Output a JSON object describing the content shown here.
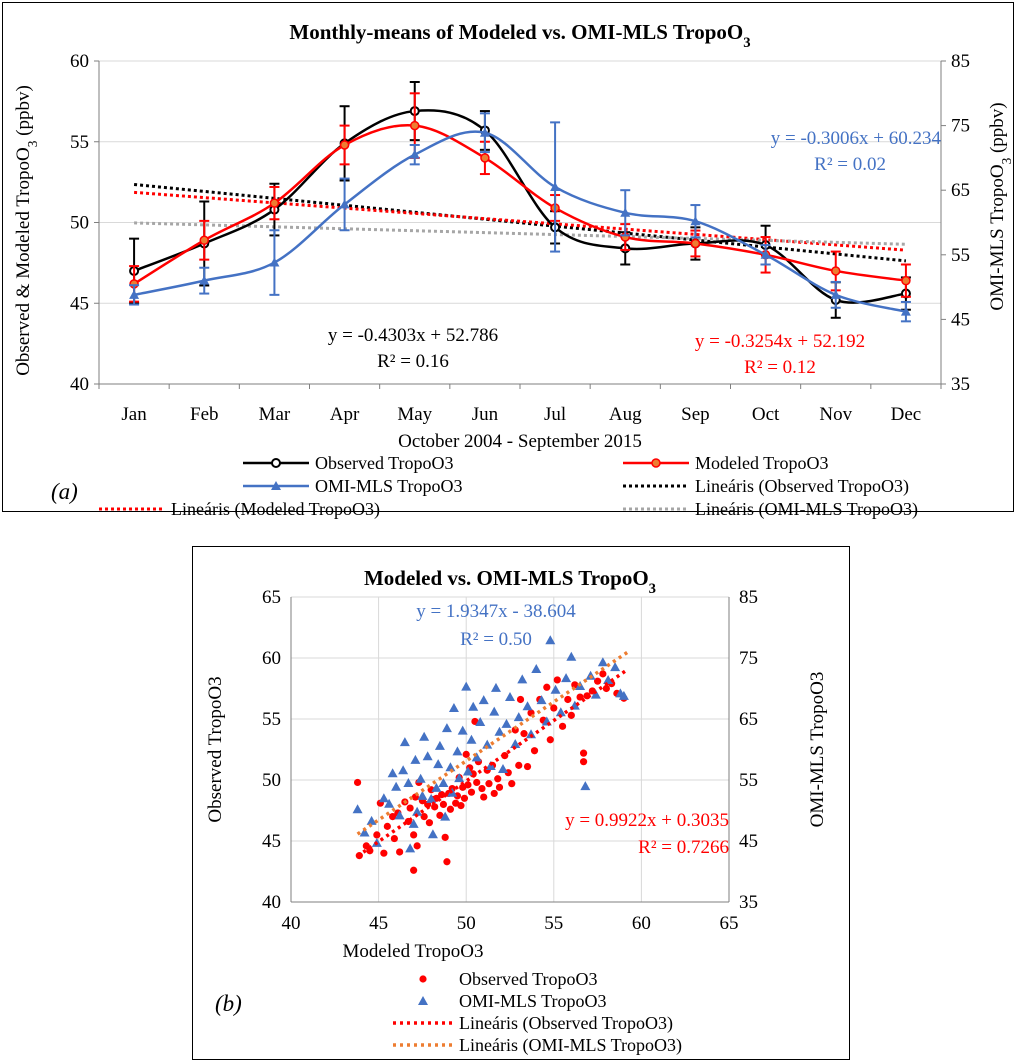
{
  "chart_data": [
    {
      "type": "line",
      "panel_label": "(a)",
      "title": "Monthly-means of Modeled vs. OMI-MLS TropoO",
      "title_subscript": "3",
      "xlabel": "October 2004 - September 2015",
      "ylabel": "Observed & Modeled TropoO",
      "ylabel_subscript": "3",
      "ylabel_unit": " (ppbv)",
      "y2label": "OMI-MLS TropoO",
      "y2label_subscript": "3",
      "y2label_unit": " (ppbv)",
      "ylim": [
        40,
        60
      ],
      "y2lim": [
        35,
        85
      ],
      "yticks": [
        40,
        45,
        50,
        55,
        60
      ],
      "y2ticks": [
        35,
        45,
        55,
        65,
        75,
        85
      ],
      "categories": [
        "Jan",
        "Feb",
        "Mar",
        "Apr",
        "May",
        "Jun",
        "Jul",
        "Aug",
        "Sep",
        "Oct",
        "Nov",
        "Dec"
      ],
      "grid": "horizontal",
      "series": [
        {
          "name": "Observed TropoO3",
          "axis": "left",
          "color": "#000000",
          "marker": "circle",
          "values": [
            47.0,
            48.7,
            50.8,
            54.9,
            56.9,
            55.7,
            49.7,
            48.4,
            48.7,
            48.6,
            45.2,
            45.6
          ],
          "err": [
            2.0,
            2.6,
            1.6,
            2.3,
            1.8,
            1.2,
            1.0,
            1.0,
            1.0,
            1.2,
            1.1,
            1.0
          ]
        },
        {
          "name": "Modeled TropoO3",
          "axis": "left",
          "color": "#ff0000",
          "marker": "circle-filled",
          "values": [
            46.2,
            48.9,
            51.2,
            54.8,
            56.0,
            54.0,
            50.9,
            49.1,
            48.7,
            48.0,
            47.0,
            46.4
          ],
          "err": [
            1.1,
            1.2,
            1.0,
            1.2,
            2.0,
            1.0,
            0.8,
            0.8,
            0.8,
            1.1,
            1.2,
            1.0
          ]
        },
        {
          "name": "OMI-MLS TropoO3",
          "axis": "right",
          "color": "#4472c4",
          "marker": "triangle",
          "values": [
            48.8,
            51.0,
            53.8,
            62.8,
            70.5,
            73.9,
            65.5,
            61.5,
            60.2,
            55.0,
            48.8,
            46.2
          ],
          "err": [
            1.5,
            2.0,
            5.0,
            4.0,
            1.5,
            3.0,
            10.0,
            3.5,
            2.5,
            1.5,
            2.0,
            1.5
          ]
        }
      ],
      "trendlines": [
        {
          "name": "Lineáris (Observed TropoO3)",
          "axis": "left",
          "color": "#000000",
          "equation": "y = -0.4303x + 52.786",
          "r2": "R² = 0.16",
          "slope": -0.4303,
          "intercept": 52.786
        },
        {
          "name": "Lineáris (Modeled TropoO3)",
          "axis": "left",
          "color": "#ff0000",
          "equation": "y = -0.3254x + 52.192",
          "r2": "R² = 0.12",
          "slope": -0.3254,
          "intercept": 52.192
        },
        {
          "name": "Lineáris (OMI-MLS TropoO3)",
          "axis": "right",
          "color": "#a6a6a6",
          "equation": "y = -0.3006x + 60.234",
          "r2": "R² = 0.02",
          "slope": -0.3006,
          "intercept": 60.234,
          "label_color": "#4472c4"
        }
      ]
    },
    {
      "type": "scatter",
      "panel_label": "(b)",
      "title": "Modeled vs. OMI-MLS TropoO",
      "title_subscript": "3",
      "xlabel": "Modeled TropoO3",
      "ylabel": "Observed TropoO3",
      "y2label": "OMI-MLS TropoO3",
      "xlim": [
        40,
        65
      ],
      "ylim": [
        40,
        65
      ],
      "y2lim": [
        35,
        85
      ],
      "xticks": [
        40,
        45,
        50,
        55,
        60,
        65
      ],
      "yticks": [
        40,
        45,
        50,
        55,
        60,
        65
      ],
      "y2ticks": [
        35,
        45,
        55,
        65,
        75,
        85
      ],
      "grid": "both",
      "series": [
        {
          "name": "Observed TropoO3",
          "axis": "left",
          "color": "#ff0000",
          "marker": "circle",
          "points": [
            [
              43.8,
              49.8
            ],
            [
              43.9,
              43.8
            ],
            [
              44.3,
              44.6
            ],
            [
              44.5,
              44.2
            ],
            [
              44.9,
              45.5
            ],
            [
              45.1,
              48.1
            ],
            [
              45.3,
              44.0
            ],
            [
              45.5,
              46.2
            ],
            [
              45.8,
              47.0
            ],
            [
              45.9,
              45.2
            ],
            [
              46.1,
              47.3
            ],
            [
              46.2,
              44.1
            ],
            [
              46.5,
              48.2
            ],
            [
              46.7,
              46.6
            ],
            [
              46.8,
              47.7
            ],
            [
              47.0,
              45.5
            ],
            [
              47.1,
              48.6
            ],
            [
              47.0,
              42.6
            ],
            [
              47.2,
              44.6
            ],
            [
              47.3,
              49.8
            ],
            [
              47.5,
              48.3
            ],
            [
              47.6,
              47.0
            ],
            [
              47.8,
              48.0
            ],
            [
              47.9,
              46.5
            ],
            [
              48.0,
              49.2
            ],
            [
              48.1,
              48.4
            ],
            [
              48.2,
              47.8
            ],
            [
              48.3,
              48.5
            ],
            [
              48.5,
              47.1
            ],
            [
              48.6,
              48.8
            ],
            [
              48.7,
              48.0
            ],
            [
              48.8,
              45.3
            ],
            [
              48.9,
              43.3
            ],
            [
              49.0,
              48.9
            ],
            [
              49.1,
              47.6
            ],
            [
              49.2,
              49.3
            ],
            [
              49.4,
              48.1
            ],
            [
              49.5,
              48.7
            ],
            [
              49.6,
              50.2
            ],
            [
              49.7,
              47.9
            ],
            [
              49.8,
              49.4
            ],
            [
              49.9,
              48.5
            ],
            [
              50.0,
              52.1
            ],
            [
              50.1,
              49.6
            ],
            [
              50.2,
              51.0
            ],
            [
              50.3,
              49.0
            ],
            [
              50.4,
              50.5
            ],
            [
              50.5,
              54.8
            ],
            [
              50.6,
              49.8
            ],
            [
              50.7,
              51.5
            ],
            [
              50.9,
              49.3
            ],
            [
              51.0,
              48.6
            ],
            [
              51.2,
              50.8
            ],
            [
              51.3,
              49.7
            ],
            [
              51.5,
              51.2
            ],
            [
              51.6,
              48.9
            ],
            [
              51.8,
              50.1
            ],
            [
              51.9,
              49.4
            ],
            [
              52.2,
              52.0
            ],
            [
              52.4,
              50.6
            ],
            [
              52.6,
              49.7
            ],
            [
              52.8,
              54.1
            ],
            [
              53.0,
              51.2
            ],
            [
              53.1,
              56.6
            ],
            [
              53.3,
              53.8
            ],
            [
              53.5,
              51.1
            ],
            [
              53.7,
              55.5
            ],
            [
              53.9,
              52.4
            ],
            [
              54.2,
              56.6
            ],
            [
              54.4,
              54.9
            ],
            [
              54.6,
              57.6
            ],
            [
              54.8,
              53.3
            ],
            [
              55.0,
              55.9
            ],
            [
              55.2,
              58.2
            ],
            [
              55.5,
              54.4
            ],
            [
              55.8,
              56.6
            ],
            [
              56.0,
              55.3
            ],
            [
              56.2,
              57.8
            ],
            [
              56.5,
              56.8
            ],
            [
              56.7,
              52.2
            ],
            [
              56.7,
              51.5
            ],
            [
              56.9,
              56.9
            ],
            [
              57.2,
              57.3
            ],
            [
              57.5,
              58.1
            ],
            [
              57.8,
              58.7
            ],
            [
              58.0,
              57.5
            ],
            [
              58.3,
              57.9
            ],
            [
              58.6,
              57.1
            ],
            [
              59.0,
              56.7
            ]
          ]
        },
        {
          "name": "OMI-MLS TropoO3",
          "axis": "right",
          "color": "#4472c4",
          "marker": "triangle",
          "points": [
            [
              43.8,
              50.2
            ],
            [
              44.2,
              46.4
            ],
            [
              44.6,
              48.3
            ],
            [
              44.9,
              44.7
            ],
            [
              45.3,
              52.0
            ],
            [
              45.6,
              51.1
            ],
            [
              45.8,
              56.1
            ],
            [
              46.0,
              53.9
            ],
            [
              46.2,
              49.2
            ],
            [
              46.4,
              56.6
            ],
            [
              46.5,
              61.2
            ],
            [
              46.7,
              54.5
            ],
            [
              46.8,
              43.8
            ],
            [
              47.0,
              47.8
            ],
            [
              47.1,
              58.3
            ],
            [
              47.2,
              49.8
            ],
            [
              47.4,
              55.2
            ],
            [
              47.5,
              52.4
            ],
            [
              47.6,
              62.1
            ],
            [
              47.8,
              58.9
            ],
            [
              48.0,
              51.9
            ],
            [
              48.1,
              46.1
            ],
            [
              48.3,
              53.7
            ],
            [
              48.4,
              57.6
            ],
            [
              48.5,
              60.6
            ],
            [
              48.7,
              54.5
            ],
            [
              48.8,
              49.0
            ],
            [
              48.9,
              63.5
            ],
            [
              49.1,
              57.1
            ],
            [
              49.2,
              52.9
            ],
            [
              49.3,
              66.8
            ],
            [
              49.5,
              59.7
            ],
            [
              49.6,
              55.3
            ],
            [
              49.8,
              63.1
            ],
            [
              50.0,
              70.3
            ],
            [
              50.1,
              56.4
            ],
            [
              50.3,
              61.6
            ],
            [
              50.4,
              67.0
            ],
            [
              50.6,
              58.7
            ],
            [
              50.8,
              64.5
            ],
            [
              51.0,
              68.1
            ],
            [
              51.2,
              60.8
            ],
            [
              51.4,
              57.3
            ],
            [
              51.6,
              66.2
            ],
            [
              51.7,
              70.1
            ],
            [
              51.9,
              62.9
            ],
            [
              52.1,
              56.8
            ],
            [
              52.3,
              64.2
            ],
            [
              52.5,
              68.6
            ],
            [
              52.8,
              60.9
            ],
            [
              53.0,
              65.3
            ],
            [
              53.2,
              71.5
            ],
            [
              53.5,
              67.1
            ],
            [
              53.7,
              62.5
            ],
            [
              54.0,
              73.2
            ],
            [
              54.3,
              68.1
            ],
            [
              54.6,
              64.6
            ],
            [
              54.8,
              77.9
            ],
            [
              55.1,
              69.8
            ],
            [
              55.4,
              66.1
            ],
            [
              55.7,
              71.7
            ],
            [
              56.0,
              75.2
            ],
            [
              56.2,
              67.2
            ],
            [
              56.5,
              70.4
            ],
            [
              56.8,
              54.0
            ],
            [
              57.1,
              72.1
            ],
            [
              57.4,
              69.0
            ],
            [
              57.8,
              74.3
            ],
            [
              58.1,
              71.4
            ],
            [
              58.5,
              73.5
            ],
            [
              58.8,
              69.2
            ],
            [
              59.0,
              68.8
            ]
          ]
        }
      ],
      "trendlines": [
        {
          "name": "Lineáris (Observed TropoO3)",
          "axis": "left",
          "color": "#ff0000",
          "equation": "y = 0.9922x + 0.3035",
          "r2": "R² = 0.7266",
          "slope": 0.9922,
          "intercept": 0.3035
        },
        {
          "name": "Lineáris (OMI-MLS TropoO3)",
          "axis": "right",
          "color": "#ed7d31",
          "equation": "y = 1.9347x - 38.604",
          "r2": "R² = 0.50",
          "slope": 1.9347,
          "intercept": -38.604,
          "label_color": "#4472c4"
        }
      ]
    }
  ]
}
